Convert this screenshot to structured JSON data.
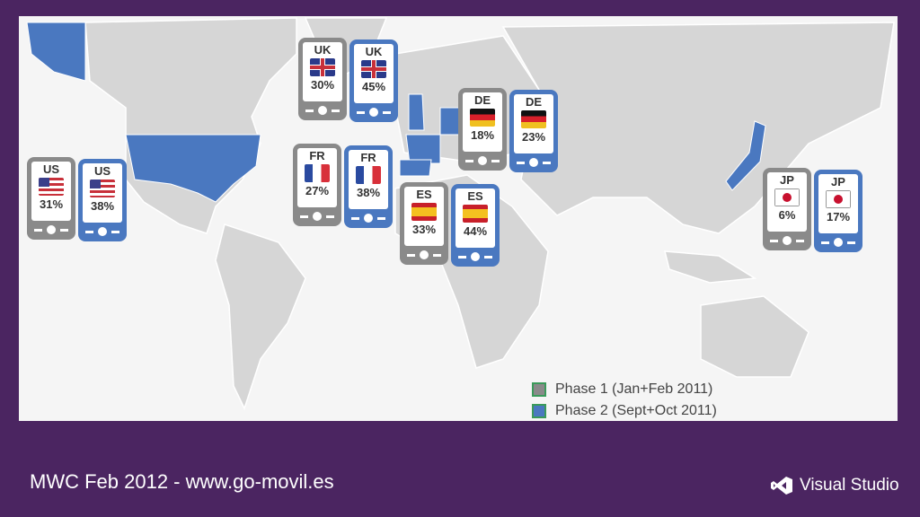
{
  "colors": {
    "phase1": "#8a8a8a",
    "phase2": "#4a78c0",
    "background": "#4b2561",
    "highlight": "#4a78c0"
  },
  "markers": [
    {
      "code": "US",
      "flag": "us-flag",
      "phase1": "31%",
      "phase2": "38%"
    },
    {
      "code": "UK",
      "flag": "uk-flag",
      "phase1": "30%",
      "phase2": "45%"
    },
    {
      "code": "FR",
      "flag": "fr-flag",
      "phase1": "27%",
      "phase2": "38%"
    },
    {
      "code": "DE",
      "flag": "de-flag",
      "phase1": "18%",
      "phase2": "23%"
    },
    {
      "code": "ES",
      "flag": "es-flag",
      "phase1": "33%",
      "phase2": "44%"
    },
    {
      "code": "JP",
      "flag": "jp-flag",
      "phase1": "6%",
      "phase2": "17%"
    }
  ],
  "legend": {
    "phase1": "Phase 1 (Jan+Feb 2011)",
    "phase2": "Phase 2 (Sept+Oct 2011)"
  },
  "footer": {
    "text": "MWC  Feb 2012 - www.go-movil.es",
    "logo": "Visual Studio"
  }
}
